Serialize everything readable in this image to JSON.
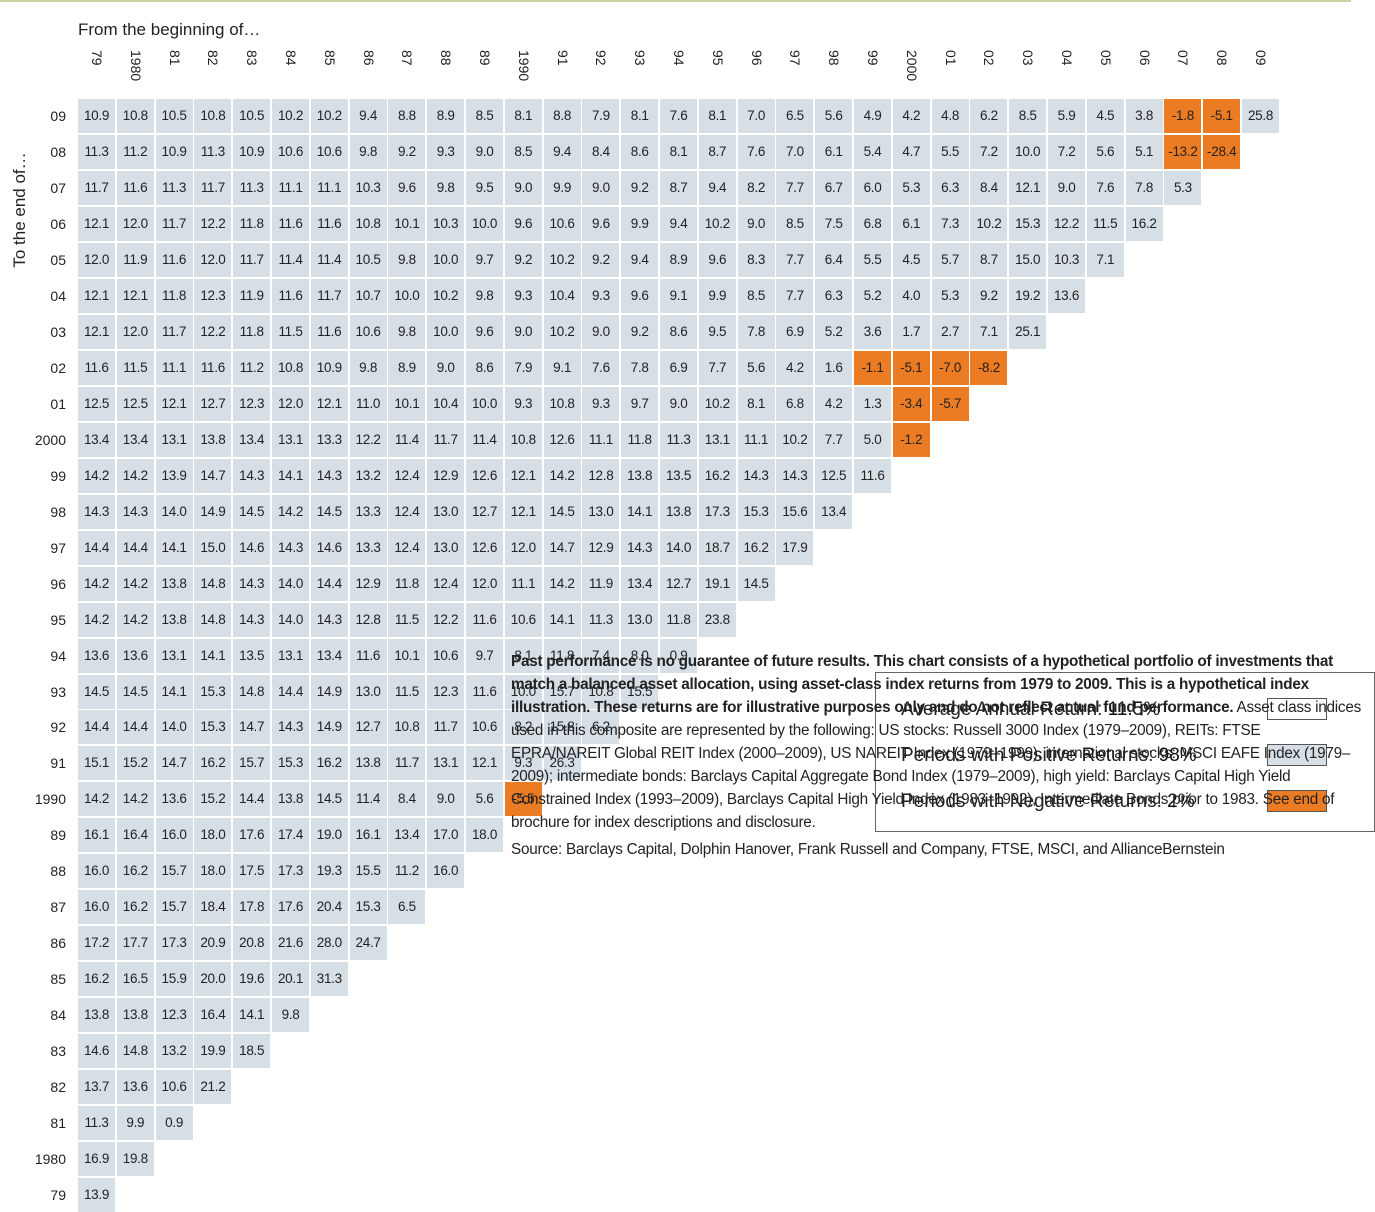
{
  "header": {
    "from_label": "From the beginning of…",
    "to_label": "To the end of…"
  },
  "table": {
    "columns": [
      "79",
      "1980",
      "81",
      "82",
      "83",
      "84",
      "85",
      "86",
      "87",
      "88",
      "89",
      "1990",
      "91",
      "92",
      "93",
      "94",
      "95",
      "96",
      "97",
      "98",
      "99",
      "2000",
      "01",
      "02",
      "03",
      "04",
      "05",
      "06",
      "07",
      "08",
      "09"
    ],
    "row_labels": [
      "09",
      "08",
      "07",
      "06",
      "05",
      "04",
      "03",
      "02",
      "01",
      "2000",
      "99",
      "98",
      "97",
      "96",
      "95",
      "94",
      "93",
      "92",
      "91",
      "1990",
      "89",
      "88",
      "87",
      "86",
      "85",
      "84",
      "83",
      "82",
      "81",
      "1980",
      "79"
    ],
    "rows": [
      [
        "10.9",
        "10.8",
        "10.5",
        "10.8",
        "10.5",
        "10.2",
        "10.2",
        "9.4",
        "8.8",
        "8.9",
        "8.5",
        "8.1",
        "8.8",
        "7.9",
        "8.1",
        "7.6",
        "8.1",
        "7.0",
        "6.5",
        "5.6",
        "4.9",
        "4.2",
        "4.8",
        "6.2",
        "8.5",
        "5.9",
        "4.5",
        "3.8",
        "-1.8",
        "-5.1",
        "25.8"
      ],
      [
        "11.3",
        "11.2",
        "10.9",
        "11.3",
        "10.9",
        "10.6",
        "10.6",
        "9.8",
        "9.2",
        "9.3",
        "9.0",
        "8.5",
        "9.4",
        "8.4",
        "8.6",
        "8.1",
        "8.7",
        "7.6",
        "7.0",
        "6.1",
        "5.4",
        "4.7",
        "5.5",
        "7.2",
        "10.0",
        "7.2",
        "5.6",
        "5.1",
        "-13.2",
        "-28.4"
      ],
      [
        "11.7",
        "11.6",
        "11.3",
        "11.7",
        "11.3",
        "11.1",
        "11.1",
        "10.3",
        "9.6",
        "9.8",
        "9.5",
        "9.0",
        "9.9",
        "9.0",
        "9.2",
        "8.7",
        "9.4",
        "8.2",
        "7.7",
        "6.7",
        "6.0",
        "5.3",
        "6.3",
        "8.4",
        "12.1",
        "9.0",
        "7.6",
        "7.8",
        "5.3"
      ],
      [
        "12.1",
        "12.0",
        "11.7",
        "12.2",
        "11.8",
        "11.6",
        "11.6",
        "10.8",
        "10.1",
        "10.3",
        "10.0",
        "9.6",
        "10.6",
        "9.6",
        "9.9",
        "9.4",
        "10.2",
        "9.0",
        "8.5",
        "7.5",
        "6.8",
        "6.1",
        "7.3",
        "10.2",
        "15.3",
        "12.2",
        "11.5",
        "16.2"
      ],
      [
        "12.0",
        "11.9",
        "11.6",
        "12.0",
        "11.7",
        "11.4",
        "11.4",
        "10.5",
        "9.8",
        "10.0",
        "9.7",
        "9.2",
        "10.2",
        "9.2",
        "9.4",
        "8.9",
        "9.6",
        "8.3",
        "7.7",
        "6.4",
        "5.5",
        "4.5",
        "5.7",
        "8.7",
        "15.0",
        "10.3",
        "7.1"
      ],
      [
        "12.1",
        "12.1",
        "11.8",
        "12.3",
        "11.9",
        "11.6",
        "11.7",
        "10.7",
        "10.0",
        "10.2",
        "9.8",
        "9.3",
        "10.4",
        "9.3",
        "9.6",
        "9.1",
        "9.9",
        "8.5",
        "7.7",
        "6.3",
        "5.2",
        "4.0",
        "5.3",
        "9.2",
        "19.2",
        "13.6"
      ],
      [
        "12.1",
        "12.0",
        "11.7",
        "12.2",
        "11.8",
        "11.5",
        "11.6",
        "10.6",
        "9.8",
        "10.0",
        "9.6",
        "9.0",
        "10.2",
        "9.0",
        "9.2",
        "8.6",
        "9.5",
        "7.8",
        "6.9",
        "5.2",
        "3.6",
        "1.7",
        "2.7",
        "7.1",
        "25.1"
      ],
      [
        "11.6",
        "11.5",
        "11.1",
        "11.6",
        "11.2",
        "10.8",
        "10.9",
        "9.8",
        "8.9",
        "9.0",
        "8.6",
        "7.9",
        "9.1",
        "7.6",
        "7.8",
        "6.9",
        "7.7",
        "5.6",
        "4.2",
        "1.6",
        "-1.1",
        "-5.1",
        "-7.0",
        "-8.2"
      ],
      [
        "12.5",
        "12.5",
        "12.1",
        "12.7",
        "12.3",
        "12.0",
        "12.1",
        "11.0",
        "10.1",
        "10.4",
        "10.0",
        "9.3",
        "10.8",
        "9.3",
        "9.7",
        "9.0",
        "10.2",
        "8.1",
        "6.8",
        "4.2",
        "1.3",
        "-3.4",
        "-5.7"
      ],
      [
        "13.4",
        "13.4",
        "13.1",
        "13.8",
        "13.4",
        "13.1",
        "13.3",
        "12.2",
        "11.4",
        "11.7",
        "11.4",
        "10.8",
        "12.6",
        "11.1",
        "11.8",
        "11.3",
        "13.1",
        "11.1",
        "10.2",
        "7.7",
        "5.0",
        "-1.2"
      ],
      [
        "14.2",
        "14.2",
        "13.9",
        "14.7",
        "14.3",
        "14.1",
        "14.3",
        "13.2",
        "12.4",
        "12.9",
        "12.6",
        "12.1",
        "14.2",
        "12.8",
        "13.8",
        "13.5",
        "16.2",
        "14.3",
        "14.3",
        "12.5",
        "11.6"
      ],
      [
        "14.3",
        "14.3",
        "14.0",
        "14.9",
        "14.5",
        "14.2",
        "14.5",
        "13.3",
        "12.4",
        "13.0",
        "12.7",
        "12.1",
        "14.5",
        "13.0",
        "14.1",
        "13.8",
        "17.3",
        "15.3",
        "15.6",
        "13.4"
      ],
      [
        "14.4",
        "14.4",
        "14.1",
        "15.0",
        "14.6",
        "14.3",
        "14.6",
        "13.3",
        "12.4",
        "13.0",
        "12.6",
        "12.0",
        "14.7",
        "12.9",
        "14.3",
        "14.0",
        "18.7",
        "16.2",
        "17.9"
      ],
      [
        "14.2",
        "14.2",
        "13.8",
        "14.8",
        "14.3",
        "14.0",
        "14.4",
        "12.9",
        "11.8",
        "12.4",
        "12.0",
        "11.1",
        "14.2",
        "11.9",
        "13.4",
        "12.7",
        "19.1",
        "14.5"
      ],
      [
        "14.2",
        "14.2",
        "13.8",
        "14.8",
        "14.3",
        "14.0",
        "14.3",
        "12.8",
        "11.5",
        "12.2",
        "11.6",
        "10.6",
        "14.1",
        "11.3",
        "13.0",
        "11.8",
        "23.8"
      ],
      [
        "13.6",
        "13.6",
        "13.1",
        "14.1",
        "13.5",
        "13.1",
        "13.4",
        "11.6",
        "10.1",
        "10.6",
        "9.7",
        "8.1",
        "11.8",
        "7.4",
        "8.0",
        "0.9"
      ],
      [
        "14.5",
        "14.5",
        "14.1",
        "15.3",
        "14.8",
        "14.4",
        "14.9",
        "13.0",
        "11.5",
        "12.3",
        "11.6",
        "10.0",
        "15.7",
        "10.8",
        "15.5"
      ],
      [
        "14.4",
        "14.4",
        "14.0",
        "15.3",
        "14.7",
        "14.3",
        "14.9",
        "12.7",
        "10.8",
        "11.7",
        "10.6",
        "8.2",
        "15.8",
        "6.2"
      ],
      [
        "15.1",
        "15.2",
        "14.7",
        "16.2",
        "15.7",
        "15.3",
        "16.2",
        "13.8",
        "11.7",
        "13.1",
        "12.1",
        "9.3",
        "26.3"
      ],
      [
        "14.2",
        "14.2",
        "13.6",
        "15.2",
        "14.4",
        "13.8",
        "14.5",
        "11.4",
        "8.4",
        "9.0",
        "5.6",
        "-5.5"
      ],
      [
        "16.1",
        "16.4",
        "16.0",
        "18.0",
        "17.6",
        "17.4",
        "19.0",
        "16.1",
        "13.4",
        "17.0",
        "18.0"
      ],
      [
        "16.0",
        "16.2",
        "15.7",
        "18.0",
        "17.5",
        "17.3",
        "19.3",
        "15.5",
        "11.2",
        "16.0"
      ],
      [
        "16.0",
        "16.2",
        "15.7",
        "18.4",
        "17.8",
        "17.6",
        "20.4",
        "15.3",
        "6.5"
      ],
      [
        "17.2",
        "17.7",
        "17.3",
        "20.9",
        "20.8",
        "21.6",
        "28.0",
        "24.7"
      ],
      [
        "16.2",
        "16.5",
        "15.9",
        "20.0",
        "19.6",
        "20.1",
        "31.3"
      ],
      [
        "13.8",
        "13.8",
        "12.3",
        "16.4",
        "14.1",
        "9.8"
      ],
      [
        "14.6",
        "14.8",
        "13.2",
        "19.9",
        "18.5"
      ],
      [
        "13.7",
        "13.6",
        "10.6",
        "21.2"
      ],
      [
        "11.3",
        "9.9",
        "0.9"
      ],
      [
        "16.9",
        "19.8"
      ],
      [
        "13.9"
      ]
    ]
  },
  "legend": [
    {
      "label": "Average Annual Return: ",
      "value": "11.5%",
      "color": "#ffffff"
    },
    {
      "label": "Periods with Positive Returns: ",
      "value": "98%",
      "color": "#d6dee6"
    },
    {
      "label": "Periods with Negative Returns: ",
      "value": "2%",
      "color": "#ec7c23"
    }
  ],
  "note": {
    "bold": "Past performance is no guarantee of future results. This chart consists of a hypothetical portfolio of investments that match a balanced asset allocation, using asset-class index returns from 1979 to 2009. This is a hypothetical index illustration. These returns are for illustrative purposes only and do not reflect actual fund performance.",
    "text": " Asset class indices used in this composite are represented by the following: US stocks: Russell 3000 Index (1979–2009), REITs: FTSE EPRA/NAREIT Global REIT Index (2000–2009), US NAREIT Index (1979–1999), international stocks: MSCI EAFE Index (1979–2009); intermediate bonds: Barclays Capital Aggregate Bond Index (1979–2009), high yield: Barclays Capital High Yield Constrained Index (1993–2009), Barclays Capital High Yield Index (1983–1992), Intermediate Bonds prior to 1983. See end of brochure for index descriptions and disclosure.",
    "source": "Source: Barclays Capital, Dolphin Hanover, Frank Russell and Company, FTSE, MSCI, and AllianceBernstein"
  }
}
